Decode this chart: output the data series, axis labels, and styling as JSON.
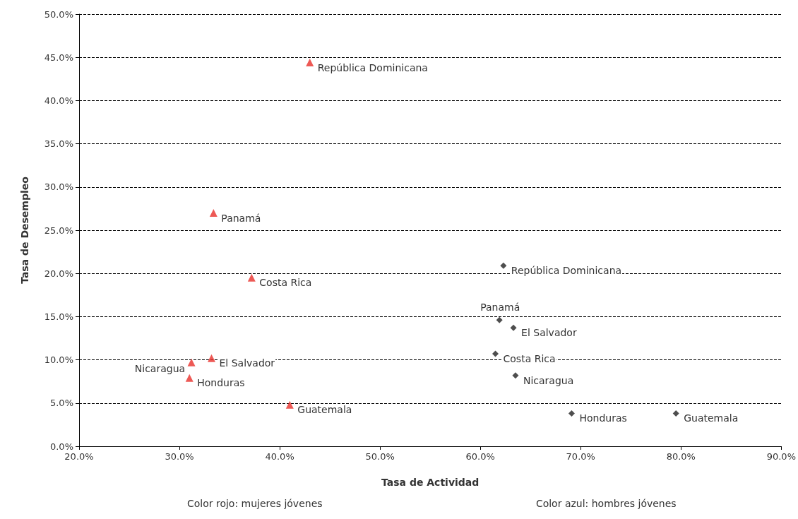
{
  "chart_data": {
    "type": "scatter",
    "xlabel": "Tasa de Actividad",
    "ylabel": "Tasa de Desempleo",
    "xlim": [
      20,
      90
    ],
    "xticks": [
      {
        "value": 20,
        "label": "20.0%"
      },
      {
        "value": 30,
        "label": "30.0%"
      },
      {
        "value": 40,
        "label": "40.0%"
      },
      {
        "value": 50,
        "label": "50.0%"
      },
      {
        "value": 60,
        "label": "60.0%"
      },
      {
        "value": 70,
        "label": "70.0%"
      },
      {
        "value": 80,
        "label": "80.0%"
      },
      {
        "value": 90,
        "label": "90.0%"
      }
    ],
    "ylim": [
      0,
      50
    ],
    "yticks": [
      {
        "value": 0,
        "label": "0.0%"
      },
      {
        "value": 5,
        "label": "5.0%"
      },
      {
        "value": 10,
        "label": "10.0%"
      },
      {
        "value": 15,
        "label": "15.0%"
      },
      {
        "value": 20,
        "label": "20.0%"
      },
      {
        "value": 25,
        "label": "25.0%"
      },
      {
        "value": 30,
        "label": "30.0%"
      },
      {
        "value": 35,
        "label": "35.0%"
      },
      {
        "value": 40,
        "label": "40.0%"
      },
      {
        "value": 45,
        "label": "45.0%"
      },
      {
        "value": 50,
        "label": "50.0%"
      }
    ],
    "grid": "y",
    "line_style": "dashed",
    "series": [
      {
        "color": "#e8302a",
        "marker": "triangle",
        "x": [
          43.0,
          33.4,
          37.2,
          33.2,
          31.2,
          31.0,
          41.0
        ],
        "values": [
          44.4,
          27.0,
          19.5,
          10.2,
          9.7,
          7.9,
          4.8
        ]
      },
      {
        "color": "#222222",
        "marker": "diamond",
        "x": [
          62.3,
          61.9,
          63.3,
          61.5,
          63.5,
          69.1,
          79.5
        ],
        "values": [
          20.9,
          14.6,
          13.7,
          10.7,
          8.2,
          3.8,
          3.8
        ]
      }
    ],
    "annotations": [
      {
        "text": "República Dominicana",
        "x": 43.0,
        "y": 44.4
      },
      {
        "text": "Panamá",
        "x": 33.4,
        "y": 27.0
      },
      {
        "text": "Costa Rica",
        "x": 37.2,
        "y": 19.5
      },
      {
        "text": "El Salvador",
        "x": 33.2,
        "y": 10.2
      },
      {
        "text": "Nicaragua",
        "x": 31.2,
        "y": 9.7
      },
      {
        "text": "Honduras",
        "x": 31.0,
        "y": 7.9
      },
      {
        "text": "Guatemala",
        "x": 41.0,
        "y": 4.8
      },
      {
        "text": "República Dominicana",
        "x": 62.3,
        "y": 20.9
      },
      {
        "text": "Panamá",
        "x": 61.9,
        "y": 14.6
      },
      {
        "text": "El Salvador",
        "x": 63.3,
        "y": 13.7
      },
      {
        "text": "Costa Rica",
        "x": 61.5,
        "y": 10.7
      },
      {
        "text": "Nicaragua",
        "x": 63.5,
        "y": 8.2
      },
      {
        "text": "Honduras",
        "x": 69.1,
        "y": 3.8
      },
      {
        "text": "Guatemala",
        "x": 79.5,
        "y": 3.8
      },
      "Color rojo: mujeres jóvenes",
      "Color azul: hombres jóvenes"
    ]
  }
}
